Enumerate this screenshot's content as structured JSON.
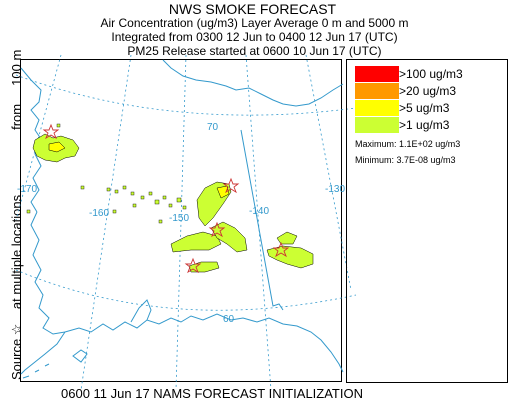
{
  "header": {
    "title": "NWS SMOKE FORECAST",
    "line1": "Air Concentration (ug/m3) Layer Average    0 m and  5000 m",
    "line2": "Integrated from 0300 12 Jun to 0400 12 Jun 17 (UTC)",
    "line3": "PM25 Release started at 0600 10 Jun 17 (UTC)"
  },
  "side_label": {
    "source": "Source ☆",
    "locations": "at multiple locations",
    "from": "from",
    "height": "100 m"
  },
  "footer": "0600 11 Jun 17 NAMS FORECAST INITIALIZATION",
  "legend": {
    "items": [
      {
        "label": ">100 ug/m3",
        "color": "#ff0000"
      },
      {
        "label": ">20 ug/m3",
        "color": "#ff9900"
      },
      {
        "label": ">5 ug/m3",
        "color": "#ffff00"
      },
      {
        "label": ">1 ug/m3",
        "color": "#ccff33"
      }
    ],
    "maximum": "Maximum:  1.1E+02 ug/m3",
    "minimum": "Minimum:  3.7E-08 ug/m3"
  },
  "map": {
    "graticule_labels": {
      "lat70": "70",
      "lat60": "60",
      "lon170": "-170",
      "lon160": "-160",
      "lon150": "-150",
      "lon140": "-140",
      "lon130": "-130"
    },
    "colors": {
      "coast": "#3399cc",
      "grid": "#3399cc",
      "border": "#3399cc",
      "plume_edge": "#000000"
    }
  }
}
